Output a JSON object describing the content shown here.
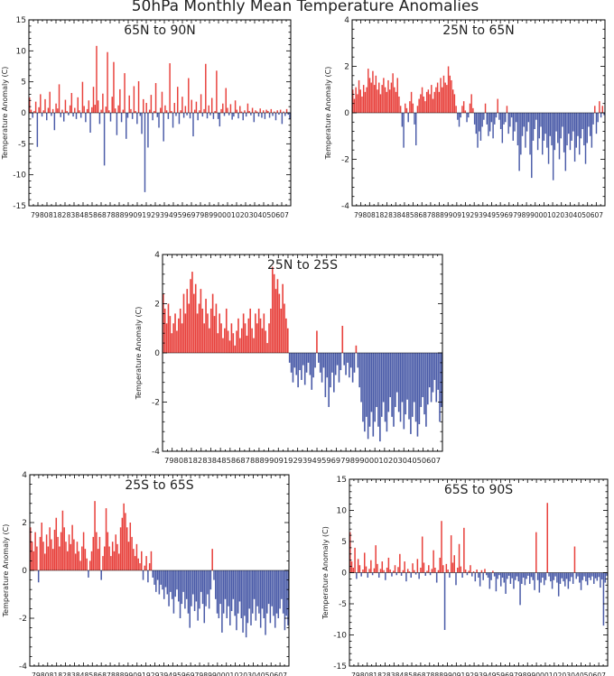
{
  "figure": {
    "title": "50hPa Monthly Mean Temperature Anomalies",
    "ylabel": "Temperature Anomaly (C)",
    "year_tick_text": "7980818283848586878889909192939495969798990001020304050607",
    "colors": {
      "positive": "#e8413c",
      "negative": "#4a5ba8"
    }
  },
  "chart_data": [
    {
      "type": "bar",
      "title": "65N to 90N",
      "ylabel": "Temperature Anomaly (C)",
      "ylim": [
        -15,
        15
      ],
      "yticks": [
        -15,
        -10,
        -5,
        0,
        5,
        10,
        15
      ],
      "xstart": 1979,
      "xend": 2008,
      "step_months": 2,
      "values": [
        2.5,
        0.5,
        -0.8,
        0.3,
        1.8,
        -5.5,
        0.9,
        3.0,
        -0.6,
        0.4,
        2.2,
        -1.2,
        0.8,
        3.4,
        -0.5,
        0.6,
        -2.8,
        1.5,
        0.7,
        4.6,
        -0.7,
        0.5,
        -1.4,
        2.1,
        0.3,
        -0.4,
        1.2,
        3.2,
        -0.6,
        0.8,
        -1.0,
        2.5,
        0.4,
        -0.8,
        5.0,
        1.1,
        -1.5,
        0.6,
        2.0,
        -3.2,
        0.9,
        4.2,
        1.3,
        10.8,
        2.0,
        -1.8,
        0.5,
        3.1,
        -8.5,
        1.0,
        9.8,
        0.4,
        -1.4,
        2.6,
        8.2,
        0.7,
        -3.6,
        1.2,
        3.8,
        -1.5,
        0.5,
        6.4,
        -4.2,
        -0.8,
        2.8,
        0.6,
        -1.0,
        4.3,
        0.3,
        -1.8,
        5.1,
        -0.5,
        -3.4,
        2.2,
        -12.8,
        1.6,
        -5.6,
        0.5,
        2.9,
        -1.2,
        0.3,
        4.8,
        -0.7,
        -2.4,
        0.8,
        3.4,
        -4.6,
        1.2,
        0.4,
        -1.0,
        8.0,
        0.3,
        -2.4,
        1.6,
        -0.5,
        4.2,
        -1.8,
        0.4,
        2.6,
        -0.8,
        1.1,
        -0.4,
        5.6,
        -0.9,
        2.1,
        -3.8,
        0.5,
        1.8,
        -1.2,
        0.4,
        3.0,
        -0.6,
        0.6,
        7.9,
        -0.9,
        1.2,
        -0.4,
        2.4,
        -1.0,
        0.3,
        6.8,
        -1.0,
        -2.2,
        0.6,
        1.5,
        -0.5,
        4.0,
        0.8,
        -0.4,
        1.4,
        -1.1,
        -0.6,
        2.0,
        0.5,
        -0.9,
        1.1,
        0.2,
        -1.2,
        0.4,
        -0.6,
        1.5,
        0.3,
        -0.4,
        0.8,
        -1.5,
        0.4,
        0.2,
        -0.6,
        0.7,
        -0.8,
        0.4,
        -1.0,
        0.5,
        0.3,
        -0.8,
        0.6,
        -0.5,
        0.2,
        -1.2,
        0.4,
        -0.3,
        0.5,
        -1.8,
        0.2,
        -0.5,
        0.6,
        -0.3,
        -1.0
      ]
    },
    {
      "type": "bar",
      "title": "25N to 65N",
      "ylabel": "Temperature Anomaly (C)",
      "ylim": [
        -4,
        4
      ],
      "yticks": [
        -4,
        -2,
        0,
        2,
        4
      ],
      "xstart": 1979,
      "xend": 2008,
      "step_months": 2,
      "values": [
        1.0,
        0.6,
        1.1,
        0.8,
        1.4,
        1.0,
        0.7,
        1.2,
        0.9,
        1.1,
        1.9,
        1.5,
        1.3,
        1.8,
        1.2,
        1.6,
        1.0,
        1.3,
        0.8,
        1.2,
        1.5,
        1.1,
        0.9,
        1.4,
        1.0,
        1.3,
        1.7,
        1.1,
        0.9,
        1.5,
        0.7,
        0.3,
        -0.6,
        -1.5,
        0.4,
        0.2,
        -0.4,
        0.5,
        0.9,
        0.4,
        -0.5,
        -1.4,
        0.3,
        0.6,
        0.8,
        1.1,
        0.7,
        0.5,
        0.9,
        1.0,
        0.8,
        1.2,
        0.6,
        0.9,
        1.1,
        1.3,
        0.9,
        1.5,
        1.1,
        1.6,
        1.3,
        1.2,
        2.0,
        1.6,
        1.4,
        1.0,
        0.8,
        0.3,
        -0.3,
        -0.6,
        -0.2,
        0.3,
        0.5,
        0.1,
        -0.4,
        -0.2,
        0.4,
        0.8,
        0.2,
        -0.5,
        -0.9,
        -1.5,
        -0.8,
        -1.2,
        -0.6,
        -0.3,
        0.4,
        -0.5,
        -1.0,
        -0.8,
        -0.4,
        -1.1,
        -0.5,
        -0.2,
        0.6,
        -0.3,
        -0.7,
        -1.3,
        -0.5,
        -0.4,
        0.3,
        -0.9,
        -0.6,
        -0.2,
        -1.2,
        -0.8,
        -0.4,
        -1.4,
        -2.5,
        -1.8,
        -1.0,
        -0.6,
        -1.5,
        -0.8,
        -0.4,
        -1.8,
        -2.8,
        -1.2,
        -0.7,
        -0.3,
        -1.6,
        -1.1,
        -0.6,
        -1.8,
        -1.2,
        -0.9,
        -1.5,
        -2.2,
        -1.0,
        -1.4,
        -2.9,
        -1.6,
        -0.8,
        -1.3,
        -2.0,
        -1.1,
        -0.6,
        -1.7,
        -2.5,
        -1.4,
        -0.9,
        -1.6,
        -1.2,
        -0.8,
        -2.1,
        -1.5,
        -1.0,
        -1.8,
        -1.1,
        -0.7,
        -1.4,
        -2.2,
        -1.3,
        -0.6,
        -1.0,
        -1.5,
        -0.5,
        0.3,
        -0.9,
        -0.4,
        0.5,
        -0.2,
        0.3,
        -0.1
      ]
    },
    {
      "type": "bar",
      "title": "25N to 25S",
      "ylabel": "Temperature Anomaly (C)",
      "ylim": [
        -4,
        4
      ],
      "yticks": [
        -4,
        -2,
        0,
        2,
        4
      ],
      "xstart": 1979,
      "xend": 2008,
      "step_months": 2,
      "values": [
        2.4,
        1.8,
        1.2,
        2.0,
        1.5,
        0.8,
        1.2,
        1.6,
        0.9,
        1.4,
        1.8,
        1.2,
        2.4,
        1.6,
        2.6,
        2.0,
        3.0,
        3.3,
        2.4,
        2.8,
        1.6,
        2.0,
        2.6,
        1.8,
        1.2,
        2.2,
        1.6,
        1.0,
        1.8,
        2.4,
        1.5,
        2.0,
        0.8,
        1.6,
        1.2,
        0.6,
        1.0,
        1.8,
        0.9,
        0.5,
        1.2,
        0.8,
        0.3,
        0.9,
        1.4,
        0.6,
        1.0,
        1.6,
        1.2,
        0.7,
        1.4,
        1.8,
        1.0,
        0.6,
        1.6,
        1.2,
        1.8,
        1.4,
        1.0,
        1.6,
        0.9,
        0.4,
        1.2,
        1.8,
        3.5,
        3.2,
        2.6,
        3.0,
        2.4,
        1.8,
        2.8,
        2.0,
        1.4,
        1.0,
        -0.4,
        -0.8,
        -1.2,
        -0.6,
        -0.9,
        -1.4,
        -0.7,
        -1.1,
        -0.5,
        -1.3,
        -0.8,
        -0.4,
        -0.9,
        -1.5,
        -1.0,
        -0.6,
        0.9,
        -0.4,
        -0.8,
        -1.2,
        -0.6,
        -1.8,
        -1.0,
        -2.2,
        -1.4,
        -0.8,
        -1.6,
        -0.9,
        -0.5,
        -1.2,
        -0.7,
        1.1,
        -0.5,
        -0.9,
        -0.4,
        -1.0,
        -0.6,
        -1.2,
        -0.8,
        0.3,
        -0.6,
        -1.4,
        -2.0,
        -2.8,
        -3.2,
        -2.6,
        -3.5,
        -3.0,
        -2.4,
        -3.4,
        -2.8,
        -2.2,
        -3.0,
        -3.6,
        -2.6,
        -2.0,
        -2.8,
        -3.2,
        -2.4,
        -1.8,
        -2.6,
        -3.0,
        -2.2,
        -1.6,
        -2.4,
        -2.8,
        -2.0,
        -3.1,
        -2.5,
        -1.9,
        -2.7,
        -3.3,
        -2.6,
        -2.0,
        -2.8,
        -3.4,
        -2.9,
        -2.2,
        -1.8,
        -2.5,
        -3.0,
        -2.1,
        -1.4,
        -2.0,
        -1.6,
        -1.1,
        -2.0,
        -1.5,
        -2.8,
        -2.2
      ]
    },
    {
      "type": "bar",
      "title": "25S to 65S",
      "ylabel": "Temperature Anomaly (C)",
      "ylim": [
        -4,
        4
      ],
      "yticks": [
        -4,
        -2,
        0,
        2,
        4
      ],
      "xstart": 1979,
      "xend": 2008,
      "step_months": 2,
      "values": [
        1.8,
        1.2,
        0.8,
        1.6,
        1.0,
        -0.5,
        1.4,
        2.0,
        1.2,
        0.7,
        1.5,
        1.0,
        1.8,
        1.3,
        0.9,
        1.7,
        2.2,
        1.4,
        1.0,
        1.6,
        2.5,
        1.8,
        1.2,
        0.8,
        1.5,
        1.1,
        1.9,
        1.3,
        0.7,
        1.2,
        0.8,
        0.4,
        1.0,
        1.6,
        0.9,
        0.5,
        -0.3,
        0.4,
        0.8,
        1.4,
        2.9,
        1.6,
        0.9,
        1.4,
        -0.4,
        0.6,
        1.0,
        2.6,
        1.6,
        1.0,
        0.6,
        1.2,
        0.8,
        1.5,
        1.1,
        0.7,
        1.8,
        2.2,
        2.8,
        2.4,
        1.8,
        1.2,
        2.0,
        1.4,
        0.9,
        0.6,
        1.1,
        0.5,
        0.3,
        0.8,
        -0.4,
        0.2,
        0.6,
        -0.5,
        0.3,
        0.8,
        -0.3,
        -0.6,
        -0.9,
        -0.4,
        -1.0,
        -0.6,
        -0.8,
        -1.2,
        -0.7,
        -1.0,
        -1.5,
        -0.9,
        -1.2,
        -1.8,
        -1.1,
        -0.8,
        -1.3,
        -2.0,
        -1.4,
        -0.9,
        -1.6,
        -1.2,
        -1.8,
        -2.4,
        -1.5,
        -1.0,
        -1.7,
        -1.3,
        -2.1,
        -1.6,
        -0.9,
        -1.4,
        -2.2,
        -1.5,
        -1.0,
        -1.6,
        -0.8,
        0.9,
        -0.4,
        -1.2,
        -1.8,
        -2.0,
        -1.4,
        -2.6,
        -1.8,
        -1.2,
        -2.0,
        -1.5,
        -2.3,
        -1.7,
        -1.2,
        -1.9,
        -2.5,
        -1.8,
        -1.3,
        -2.0,
        -2.6,
        -1.9,
        -2.8,
        -2.2,
        -1.6,
        -2.3,
        -1.8,
        -1.2,
        -2.1,
        -1.5,
        -1.8,
        -2.4,
        -1.6,
        -2.0,
        -2.7,
        -1.8,
        -1.4,
        -2.2,
        -1.5,
        -1.9,
        -2.4,
        -1.8,
        -2.0,
        -1.6,
        -1.2,
        -1.8,
        -2.5,
        -1.9,
        -2.3
      ]
    },
    {
      "type": "bar",
      "title": "65S to 90S",
      "ylabel": "Temperature Anomaly (C)",
      "ylim": [
        -15,
        15
      ],
      "yticks": [
        -15,
        -10,
        -5,
        0,
        5,
        10,
        15
      ],
      "xstart": 1979,
      "xend": 2008,
      "step_months": 2,
      "values": [
        6.5,
        1.8,
        0.8,
        4.0,
        -1.0,
        2.2,
        1.2,
        -0.6,
        0.5,
        3.2,
        1.0,
        -0.8,
        0.6,
        2.0,
        -0.4,
        0.7,
        4.4,
        1.4,
        -0.8,
        0.6,
        1.8,
        0.4,
        -1.2,
        0.8,
        2.4,
        0.5,
        -0.6,
        0.3,
        1.2,
        -0.4,
        0.9,
        3.0,
        -0.5,
        0.4,
        1.8,
        -1.4,
        0.6,
        0.2,
        -0.8,
        1.5,
        0.4,
        -0.3,
        2.2,
        -1.0,
        0.8,
        5.8,
        1.6,
        -0.5,
        0.3,
        1.2,
        -0.4,
        0.6,
        3.6,
        0.8,
        -1.6,
        0.4,
        2.4,
        8.3,
        1.2,
        -9.2,
        1.4,
        0.5,
        -0.8,
        6.0,
        1.6,
        2.8,
        -2.0,
        0.8,
        4.6,
        1.0,
        -0.8,
        7.2,
        0.5,
        -0.4,
        0.3,
        1.2,
        -0.6,
        0.2,
        -1.4,
        0.5,
        -0.8,
        -2.2,
        0.4,
        -1.2,
        0.6,
        -0.4,
        -0.8,
        -2.6,
        -1.2,
        0.3,
        -0.6,
        -3.0,
        -1.0,
        -0.4,
        -2.2,
        -0.8,
        -1.6,
        -3.4,
        -1.0,
        -0.5,
        -1.8,
        -0.9,
        -2.6,
        -1.2,
        -0.6,
        -1.4,
        -5.2,
        -1.8,
        -0.8,
        -2.0,
        -1.0,
        -0.5,
        -1.8,
        -0.7,
        -1.2,
        -2.8,
        6.5,
        -1.2,
        -3.2,
        -1.6,
        -0.8,
        -2.0,
        -1.2,
        11.2,
        -0.6,
        -1.4,
        -2.6,
        -1.2,
        -0.6,
        -1.6,
        -3.8,
        -1.8,
        -0.9,
        -1.4,
        -2.2,
        -1.0,
        -2.6,
        -1.4,
        -0.7,
        -1.8,
        4.2,
        -1.0,
        -0.6,
        -1.6,
        -2.8,
        -1.2,
        -0.6,
        -1.4,
        -2.0,
        -0.8,
        -1.2,
        -0.6,
        -1.8,
        -0.9,
        -1.3,
        -0.7,
        -2.4,
        -1.1,
        -8.5,
        -1.6,
        -0.5
      ]
    }
  ]
}
